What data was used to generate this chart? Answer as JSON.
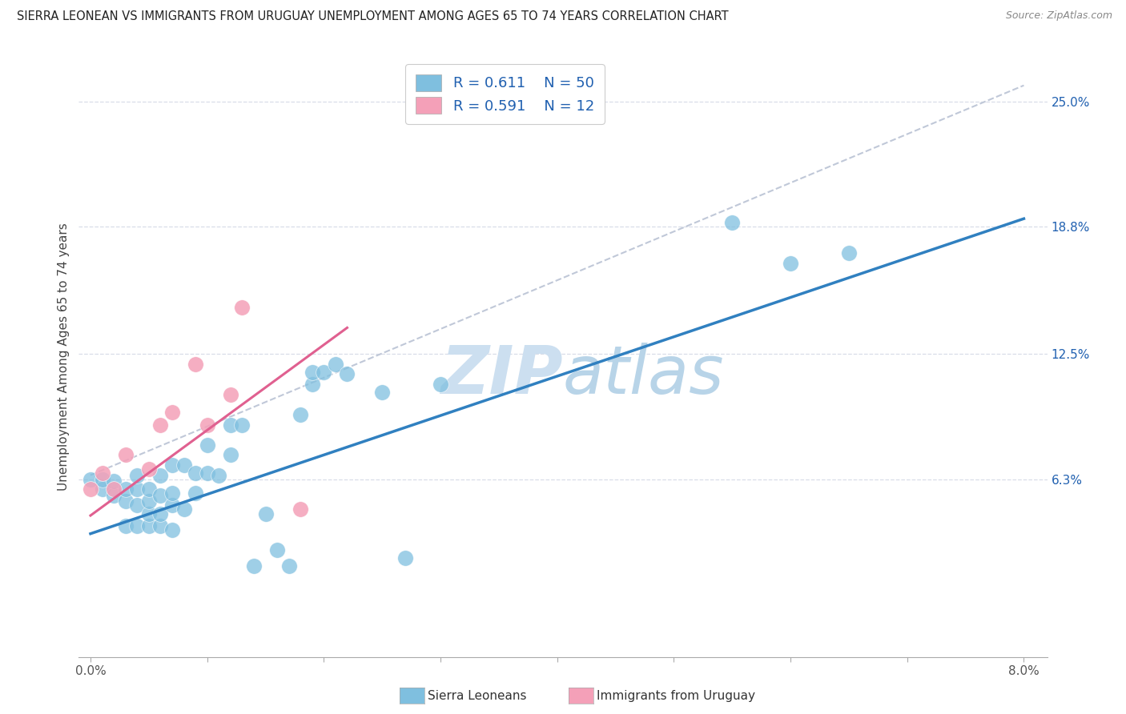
{
  "title": "SIERRA LEONEAN VS IMMIGRANTS FROM URUGUAY UNEMPLOYMENT AMONG AGES 65 TO 74 YEARS CORRELATION CHART",
  "source": "Source: ZipAtlas.com",
  "ylabel": "Unemployment Among Ages 65 to 74 years",
  "xlim": [
    -0.001,
    0.082
  ],
  "ylim": [
    -0.025,
    0.272
  ],
  "xticks": [
    0.0,
    0.01,
    0.02,
    0.03,
    0.04,
    0.05,
    0.06,
    0.07,
    0.08
  ],
  "xtick_labels": [
    "0.0%",
    "",
    "",
    "",
    "",
    "",
    "",
    "",
    "8.0%"
  ],
  "ytick_right_labels": [
    "6.3%",
    "12.5%",
    "18.8%",
    "25.0%"
  ],
  "ytick_right_values": [
    0.063,
    0.125,
    0.188,
    0.25
  ],
  "r_blue": 0.611,
  "n_blue": 50,
  "r_pink": 0.591,
  "n_pink": 12,
  "blue_color": "#7fbfdf",
  "pink_color": "#f4a0b8",
  "blue_line_color": "#3080c0",
  "pink_line_color": "#e06090",
  "dashed_line_color": "#c0c8d8",
  "legend_text_color": "#2060b0",
  "watermark_color": "#ccdff0",
  "blue_scatter_x": [
    0.0,
    0.001,
    0.001,
    0.002,
    0.002,
    0.003,
    0.003,
    0.003,
    0.004,
    0.004,
    0.004,
    0.004,
    0.005,
    0.005,
    0.005,
    0.005,
    0.006,
    0.006,
    0.006,
    0.006,
    0.007,
    0.007,
    0.007,
    0.007,
    0.008,
    0.008,
    0.009,
    0.009,
    0.01,
    0.01,
    0.011,
    0.012,
    0.012,
    0.013,
    0.014,
    0.015,
    0.016,
    0.017,
    0.018,
    0.019,
    0.019,
    0.02,
    0.021,
    0.022,
    0.025,
    0.027,
    0.03,
    0.055,
    0.06,
    0.065
  ],
  "blue_scatter_y": [
    0.063,
    0.058,
    0.063,
    0.055,
    0.062,
    0.04,
    0.052,
    0.058,
    0.04,
    0.05,
    0.058,
    0.065,
    0.04,
    0.046,
    0.052,
    0.058,
    0.04,
    0.046,
    0.055,
    0.065,
    0.038,
    0.05,
    0.056,
    0.07,
    0.048,
    0.07,
    0.056,
    0.066,
    0.066,
    0.08,
    0.065,
    0.075,
    0.09,
    0.09,
    0.02,
    0.046,
    0.028,
    0.02,
    0.095,
    0.11,
    0.116,
    0.116,
    0.12,
    0.115,
    0.106,
    0.024,
    0.11,
    0.19,
    0.17,
    0.175
  ],
  "pink_scatter_x": [
    0.0,
    0.001,
    0.002,
    0.003,
    0.005,
    0.006,
    0.007,
    0.009,
    0.01,
    0.012,
    0.013,
    0.018
  ],
  "pink_scatter_y": [
    0.058,
    0.066,
    0.058,
    0.075,
    0.068,
    0.09,
    0.096,
    0.12,
    0.09,
    0.105,
    0.148,
    0.048
  ],
  "blue_line_x": [
    0.0,
    0.08
  ],
  "blue_line_y": [
    0.036,
    0.192
  ],
  "pink_line_x": [
    0.0,
    0.022
  ],
  "pink_line_y": [
    0.045,
    0.138
  ],
  "dashed_line_x": [
    0.0,
    0.08
  ],
  "dashed_line_y": [
    0.065,
    0.258
  ]
}
